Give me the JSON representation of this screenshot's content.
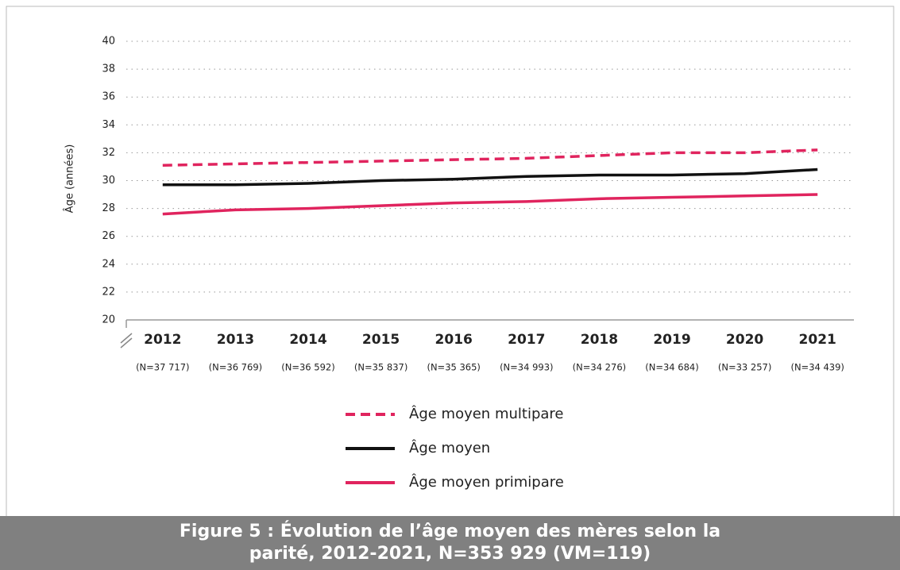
{
  "chart_data": {
    "type": "line",
    "title": "Figure 5 : Évolution de l’âge moyen des mères selon la parité, 2012-2021, N=353 929 (VM=119)",
    "y_label": "Âge (années)",
    "categories": [
      "2012",
      "2013",
      "2014",
      "2015",
      "2016",
      "2017",
      "2018",
      "2019",
      "2020",
      "2021"
    ],
    "sublabels": [
      "(N=37 717)",
      "(N=36 769)",
      "(N=36 592)",
      "(N=35 837)",
      "(N=35 365)",
      "(N=34 993)",
      "(N=34 276)",
      "(N=34 684)",
      "(N=33 257)",
      "(N=34 439)"
    ],
    "series": [
      {
        "name": "Âge moyen multipare",
        "color": "#e0245e",
        "dashed": true,
        "values": [
          31.1,
          31.2,
          31.3,
          31.4,
          31.5,
          31.6,
          31.8,
          32.0,
          32.0,
          32.2
        ]
      },
      {
        "name": "Âge moyen",
        "color": "#111111",
        "dashed": false,
        "values": [
          29.7,
          29.7,
          29.8,
          30.0,
          30.1,
          30.3,
          30.4,
          30.4,
          30.5,
          30.8
        ]
      },
      {
        "name": "Âge moyen primipare",
        "color": "#e0245e",
        "dashed": false,
        "values": [
          27.6,
          27.9,
          28.0,
          28.2,
          28.4,
          28.5,
          28.7,
          28.8,
          28.9,
          29.0
        ]
      }
    ],
    "ylim": [
      20,
      40
    ],
    "yticks": [
      20,
      22,
      24,
      26,
      28,
      30,
      32,
      34,
      36,
      38,
      40
    ],
    "grid": true
  }
}
